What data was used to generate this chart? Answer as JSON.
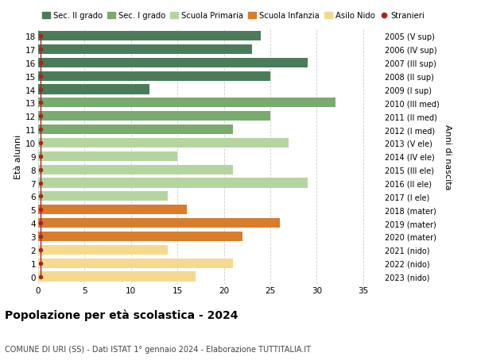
{
  "ages": [
    18,
    17,
    16,
    15,
    14,
    13,
    12,
    11,
    10,
    9,
    8,
    7,
    6,
    5,
    4,
    3,
    2,
    1,
    0
  ],
  "right_labels": [
    "2005 (V sup)",
    "2006 (IV sup)",
    "2007 (III sup)",
    "2008 (II sup)",
    "2009 (I sup)",
    "2010 (III med)",
    "2011 (II med)",
    "2012 (I med)",
    "2013 (V ele)",
    "2014 (IV ele)",
    "2015 (III ele)",
    "2016 (II ele)",
    "2017 (I ele)",
    "2018 (mater)",
    "2019 (mater)",
    "2020 (mater)",
    "2021 (nido)",
    "2022 (nido)",
    "2023 (nido)"
  ],
  "values": [
    24,
    23,
    29,
    25,
    12,
    32,
    25,
    21,
    27,
    15,
    21,
    29,
    14,
    16,
    26,
    22,
    14,
    21,
    17
  ],
  "bar_colors": [
    "#4a7c59",
    "#4a7c59",
    "#4a7c59",
    "#4a7c59",
    "#4a7c59",
    "#7aab6e",
    "#7aab6e",
    "#7aab6e",
    "#b5d5a0",
    "#b5d5a0",
    "#b5d5a0",
    "#b5d5a0",
    "#b5d5a0",
    "#d97c2e",
    "#d97c2e",
    "#d97c2e",
    "#f5d98e",
    "#f5d98e",
    "#f5d98e"
  ],
  "title": "Popolazione per età scolastica - 2024",
  "subtitle": "COMUNE DI URI (SS) - Dati ISTAT 1° gennaio 2024 - Elaborazione TUTTITALIA.IT",
  "ylabel_left": "Età alunni",
  "ylabel_right": "Anni di nascita",
  "xlim": [
    0,
    37
  ],
  "colors": {
    "sec2": "#4a7c59",
    "sec1": "#7aab6e",
    "primaria": "#b5d5a0",
    "infanzia": "#d97c2e",
    "nido": "#f5d98e",
    "stranieri": "#aa2222",
    "background": "#ffffff",
    "grid": "#cccccc"
  },
  "legend_labels": [
    "Sec. II grado",
    "Sec. I grado",
    "Scuola Primaria",
    "Scuola Infanzia",
    "Asilo Nido",
    "Stranieri"
  ],
  "bar_height": 0.72
}
